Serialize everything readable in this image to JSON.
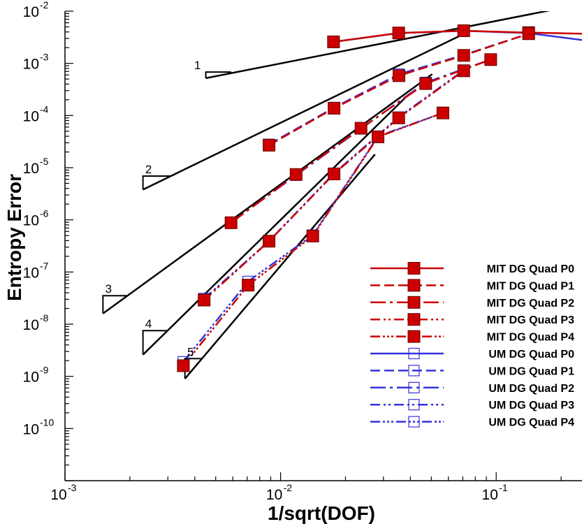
{
  "chart_data": {
    "type": "line",
    "x_scale": "log",
    "y_scale": "log",
    "xlabel": "1/sqrt(DOF)",
    "ylabel": "Entropy Error",
    "xlim": [
      0.001,
      0.25
    ],
    "ylim": [
      1e-11,
      0.01
    ],
    "x_ticks": [
      {
        "base": "10",
        "exp": "-3",
        "value": 0.001
      },
      {
        "base": "10",
        "exp": "-2",
        "value": 0.01
      },
      {
        "base": "10",
        "exp": "-1",
        "value": 0.1
      }
    ],
    "y_ticks": [
      {
        "base": "10",
        "exp": "-2",
        "value": 0.01
      },
      {
        "base": "10",
        "exp": "-3",
        "value": 0.001
      },
      {
        "base": "10",
        "exp": "-4",
        "value": 0.0001
      },
      {
        "base": "10",
        "exp": "-5",
        "value": 1e-05
      },
      {
        "base": "10",
        "exp": "-6",
        "value": 1e-06
      },
      {
        "base": "10",
        "exp": "-7",
        "value": 1e-07
      },
      {
        "base": "10",
        "exp": "-8",
        "value": 1e-08
      },
      {
        "base": "10",
        "exp": "-9",
        "value": 1e-09
      },
      {
        "base": "10",
        "exp": "-10",
        "value": 1e-10
      }
    ],
    "legend_position": "bottom-right",
    "series": [
      {
        "name": "MIT DG Quad P0",
        "color": "#cc0000",
        "marker": "filled-square",
        "dash": "solid",
        "points": [
          [
            0.0176,
            0.00258
          ],
          [
            0.0353,
            0.00382
          ],
          [
            0.0707,
            0.00422
          ],
          [
            0.1414,
            0.00388
          ],
          [
            0.25,
            0.0037
          ]
        ]
      },
      {
        "name": "MIT DG Quad P1",
        "color": "#cc0000",
        "marker": "filled-square",
        "dash": "dash",
        "points": [
          [
            0.00884,
            2.7e-05
          ],
          [
            0.0177,
            0.000138
          ],
          [
            0.0354,
            0.00058
          ],
          [
            0.0707,
            0.00142
          ],
          [
            0.1414,
            0.0037
          ]
        ]
      },
      {
        "name": "MIT DG Quad P2",
        "color": "#cc0000",
        "marker": "filled-square",
        "dash": "dashdot",
        "points": [
          [
            0.00589,
            8.8e-07
          ],
          [
            0.0118,
            7.4e-06
          ],
          [
            0.0236,
            5.7e-05
          ],
          [
            0.0471,
            0.00041
          ],
          [
            0.0943,
            0.00118
          ]
        ]
      },
      {
        "name": "MIT DG Quad P3",
        "color": "#cc0000",
        "marker": "filled-square",
        "dash": "dashdotdot",
        "points": [
          [
            0.00442,
            2.9e-08
          ],
          [
            0.00884,
            3.9e-07
          ],
          [
            0.0177,
            7.6e-06
          ],
          [
            0.0353,
            9e-05
          ],
          [
            0.0707,
            0.00072
          ]
        ]
      },
      {
        "name": "MIT DG Quad P4",
        "color": "#cc0000",
        "marker": "filled-square",
        "dash": "dashdotdotdot",
        "points": [
          [
            0.00354,
            1.6e-09
          ],
          [
            0.00707,
            5.6e-08
          ],
          [
            0.0141,
            4.9e-07
          ],
          [
            0.0283,
            3.9e-05
          ],
          [
            0.0566,
            0.000112
          ]
        ]
      },
      {
        "name": "UM DG Quad P0",
        "color": "#3333dd",
        "marker": "open-square",
        "dash": "solid",
        "points": [
          [
            0.0176,
            0.00258
          ],
          [
            0.0353,
            0.0038
          ],
          [
            0.0707,
            0.0042
          ],
          [
            0.1414,
            0.0038
          ],
          [
            0.25,
            0.0028
          ]
        ]
      },
      {
        "name": "UM DG Quad P1",
        "color": "#3333dd",
        "marker": "open-square",
        "dash": "dash",
        "points": [
          [
            0.00884,
            2.8e-05
          ],
          [
            0.0177,
            0.000142
          ],
          [
            0.0354,
            0.00062
          ],
          [
            0.0707,
            0.00145
          ],
          [
            0.1414,
            0.0037
          ]
        ]
      },
      {
        "name": "UM DG Quad P2",
        "color": "#3333dd",
        "marker": "open-square",
        "dash": "dashdot",
        "points": [
          [
            0.00589,
            8.9e-07
          ],
          [
            0.0118,
            7.2e-06
          ],
          [
            0.0236,
            5.6e-05
          ],
          [
            0.0471,
            0.00043
          ],
          [
            0.0943,
            0.00118
          ]
        ]
      },
      {
        "name": "UM DG Quad P3",
        "color": "#3333dd",
        "marker": "open-square",
        "dash": "dashdotdot",
        "points": [
          [
            0.00442,
            3.1e-08
          ],
          [
            0.00884,
            3.9e-07
          ],
          [
            0.0177,
            7.8e-06
          ],
          [
            0.0353,
            9.3e-05
          ],
          [
            0.0707,
            0.00074
          ]
        ]
      },
      {
        "name": "UM DG Quad P4",
        "color": "#3333dd",
        "marker": "open-square",
        "dash": "dashdotdotdot",
        "points": [
          [
            0.00354,
            1.9e-09
          ],
          [
            0.00707,
            6.6e-08
          ],
          [
            0.0141,
            5.1e-07
          ],
          [
            0.0283,
            4e-05
          ],
          [
            0.0566,
            0.000112
          ]
        ]
      }
    ],
    "reference_lines": [
      {
        "points": [
          [
            0.0045,
            0.00052
          ],
          [
            0.25,
            0.0137
          ]
        ]
      },
      {
        "points": [
          [
            0.0023,
            3.8e-06
          ],
          [
            0.072,
            0.0038
          ]
        ]
      },
      {
        "points": [
          [
            0.0015,
            1.6e-08
          ],
          [
            0.0505,
            0.00062
          ]
        ]
      },
      {
        "points": [
          [
            0.0023,
            2.6e-09
          ],
          [
            0.0393,
            0.000255
          ]
        ]
      },
      {
        "points": [
          [
            0.0036,
            9e-10
          ],
          [
            0.0274,
            1.8e-05
          ]
        ]
      }
    ],
    "slope_triangles": [
      {
        "label": "1",
        "x0": 0.0045,
        "x1": 0.0059,
        "y0": 0.00052
      },
      {
        "label": "2",
        "x0": 0.0023,
        "x1": 0.0031,
        "y0": 3.8e-06
      },
      {
        "label": "3",
        "x0": 0.0015,
        "x1": 0.00195,
        "y0": 1.6e-08
      },
      {
        "label": "4",
        "x0": 0.0023,
        "x1": 0.003,
        "y0": 2.6e-09
      },
      {
        "label": "5",
        "x0": 0.0036,
        "x1": 0.0043,
        "y0": 9e-10
      }
    ]
  }
}
